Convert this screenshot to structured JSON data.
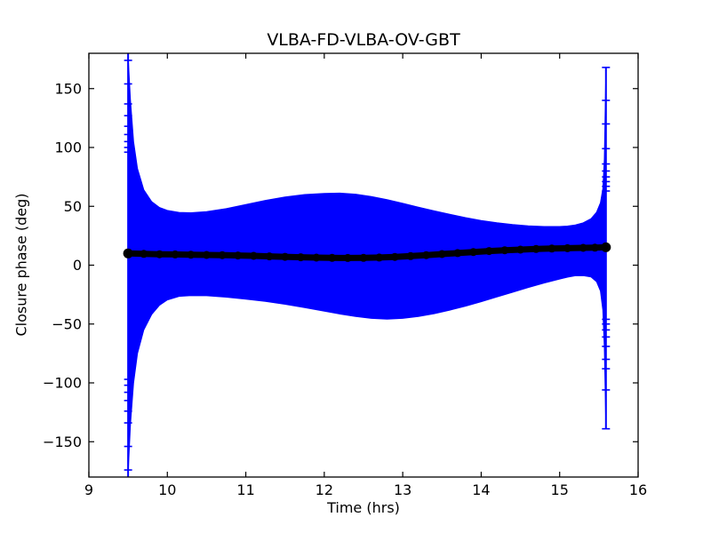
{
  "chart_data": {
    "type": "errorbar",
    "title": "VLBA-FD-VLBA-OV-GBT",
    "xlabel": "Time (hrs)",
    "ylabel": "Closure phase (deg)",
    "xlim": [
      9,
      16
    ],
    "ylim": [
      -180,
      180
    ],
    "xticks": [
      9,
      10,
      11,
      12,
      13,
      14,
      15,
      16
    ],
    "xtick_labels": [
      "9",
      "10",
      "11",
      "12",
      "13",
      "14",
      "15",
      "16"
    ],
    "yticks": [
      -150,
      -100,
      -50,
      0,
      50,
      100,
      150
    ],
    "ytick_labels": [
      "−150",
      "−100",
      "−50",
      "0",
      "50",
      "100",
      "150"
    ],
    "grid": false,
    "legend": null,
    "colors": {
      "errorbar": "#0000ff",
      "points": "#000000",
      "frame": "#000000",
      "background": "#ffffff"
    },
    "series": [
      {
        "name": "closure-phase-points",
        "color": "#000000",
        "marker": "o",
        "points": [
          [
            9.5,
            10.0
          ],
          [
            9.7,
            9.6
          ],
          [
            9.9,
            9.3
          ],
          [
            10.1,
            9.1
          ],
          [
            10.3,
            8.9
          ],
          [
            10.5,
            8.7
          ],
          [
            10.7,
            8.5
          ],
          [
            10.9,
            8.2
          ],
          [
            11.1,
            7.9
          ],
          [
            11.3,
            7.5
          ],
          [
            11.5,
            7.1
          ],
          [
            11.7,
            6.7
          ],
          [
            11.9,
            6.4
          ],
          [
            12.1,
            6.2
          ],
          [
            12.3,
            6.1
          ],
          [
            12.5,
            6.2
          ],
          [
            12.7,
            6.5
          ],
          [
            12.9,
            7.0
          ],
          [
            13.1,
            7.7
          ],
          [
            13.3,
            8.5
          ],
          [
            13.5,
            9.4
          ],
          [
            13.7,
            10.3
          ],
          [
            13.9,
            11.2
          ],
          [
            14.1,
            12.0
          ],
          [
            14.3,
            12.7
          ],
          [
            14.5,
            13.2
          ],
          [
            14.7,
            13.7
          ],
          [
            14.9,
            14.1
          ],
          [
            15.1,
            14.4
          ],
          [
            15.3,
            14.7
          ],
          [
            15.45,
            14.9
          ],
          [
            15.59,
            15.2
          ]
        ]
      }
    ],
    "error_envelope": {
      "color": "#0000ff",
      "t": [
        9.5,
        9.53,
        9.57,
        9.62,
        9.7,
        9.8,
        9.9,
        10.0,
        10.15,
        10.3,
        10.5,
        10.75,
        11.0,
        11.25,
        11.5,
        11.75,
        12.0,
        12.2,
        12.4,
        12.6,
        12.8,
        13.0,
        13.2,
        13.4,
        13.6,
        13.8,
        14.0,
        14.2,
        14.4,
        14.6,
        14.8,
        15.0,
        15.1,
        15.2,
        15.3,
        15.4,
        15.47,
        15.52,
        15.55,
        15.57,
        15.59
      ],
      "upper": [
        178,
        140,
        105,
        82,
        64,
        54,
        49,
        46.5,
        44.8,
        44.5,
        45.5,
        48,
        51.5,
        55,
        58,
        60,
        61,
        61.2,
        60.3,
        58.3,
        55.6,
        52.5,
        49.3,
        46.2,
        43.2,
        40.4,
        38,
        36,
        34.5,
        33.4,
        32.8,
        32.8,
        33.2,
        34.2,
        36,
        39.5,
        45,
        53,
        65,
        90,
        168
      ],
      "lower": [
        -178,
        -135,
        -100,
        -75,
        -55,
        -42,
        -34,
        -29.5,
        -26.5,
        -25.8,
        -26,
        -27.2,
        -28.8,
        -30.8,
        -33.2,
        -36,
        -39,
        -41.5,
        -43.6,
        -45.2,
        -45.8,
        -45.2,
        -43.6,
        -41.2,
        -38.2,
        -34.8,
        -31,
        -27,
        -23,
        -19,
        -15.2,
        -11.8,
        -10.2,
        -9,
        -8.8,
        -10,
        -14,
        -22,
        -38,
        -70,
        -139
      ]
    },
    "edge_error_bars": [
      {
        "t": 9.5,
        "hi": 180,
        "lo": -180,
        "clipped": true,
        "caps_hi": [
          174,
          154,
          137,
          127,
          118,
          111,
          105,
          100,
          96
        ],
        "caps_lo": [
          -174,
          -154,
          -134,
          -124,
          -115,
          -108,
          -102,
          -97
        ]
      },
      {
        "t": 15.59,
        "hi": 168,
        "lo": -139,
        "clipped": false,
        "caps_hi": [
          168,
          140,
          120,
          99,
          86,
          80,
          75,
          71,
          67,
          63
        ],
        "caps_lo": [
          -139,
          -106,
          -88,
          -80,
          -69,
          -61,
          -55,
          -50,
          -46
        ]
      }
    ]
  }
}
